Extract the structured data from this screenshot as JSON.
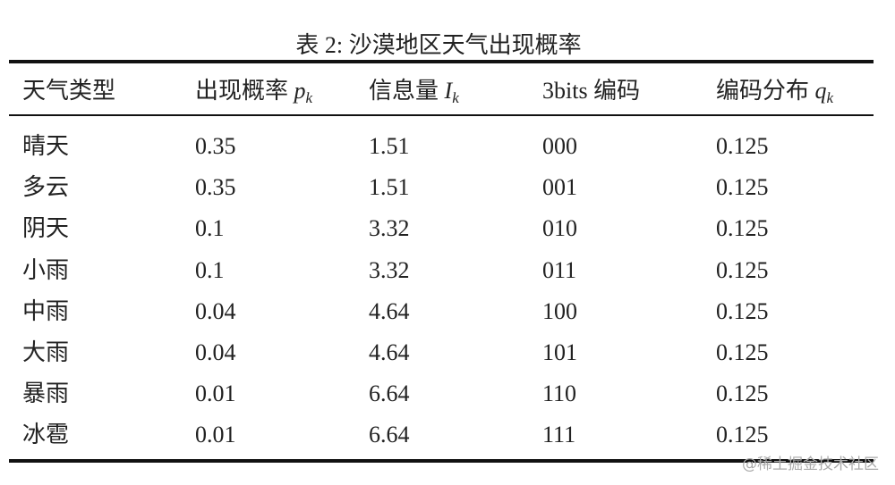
{
  "table": {
    "caption": "表 2: 沙漠地区天气出现概率",
    "header": [
      {
        "text": "天气类型"
      },
      {
        "text": "出现概率",
        "var": "p",
        "sub": "k"
      },
      {
        "text": "信息量",
        "var": "I",
        "sub": "k"
      },
      {
        "text": "3bits 编码"
      },
      {
        "text": "编码分布",
        "var": "q",
        "sub": "k"
      }
    ],
    "rows": [
      [
        "晴天",
        "0.35",
        "1.51",
        "000",
        "0.125"
      ],
      [
        "多云",
        "0.35",
        "1.51",
        "001",
        "0.125"
      ],
      [
        "阴天",
        "0.1",
        "3.32",
        "010",
        "0.125"
      ],
      [
        "小雨",
        "0.1",
        "3.32",
        "011",
        "0.125"
      ],
      [
        "中雨",
        "0.04",
        "4.64",
        "100",
        "0.125"
      ],
      [
        "大雨",
        "0.04",
        "4.64",
        "101",
        "0.125"
      ],
      [
        "暴雨",
        "0.01",
        "6.64",
        "110",
        "0.125"
      ],
      [
        "冰雹",
        "0.01",
        "6.64",
        "111",
        "0.125"
      ]
    ]
  },
  "watermark": "@稀土掘金技术社区"
}
